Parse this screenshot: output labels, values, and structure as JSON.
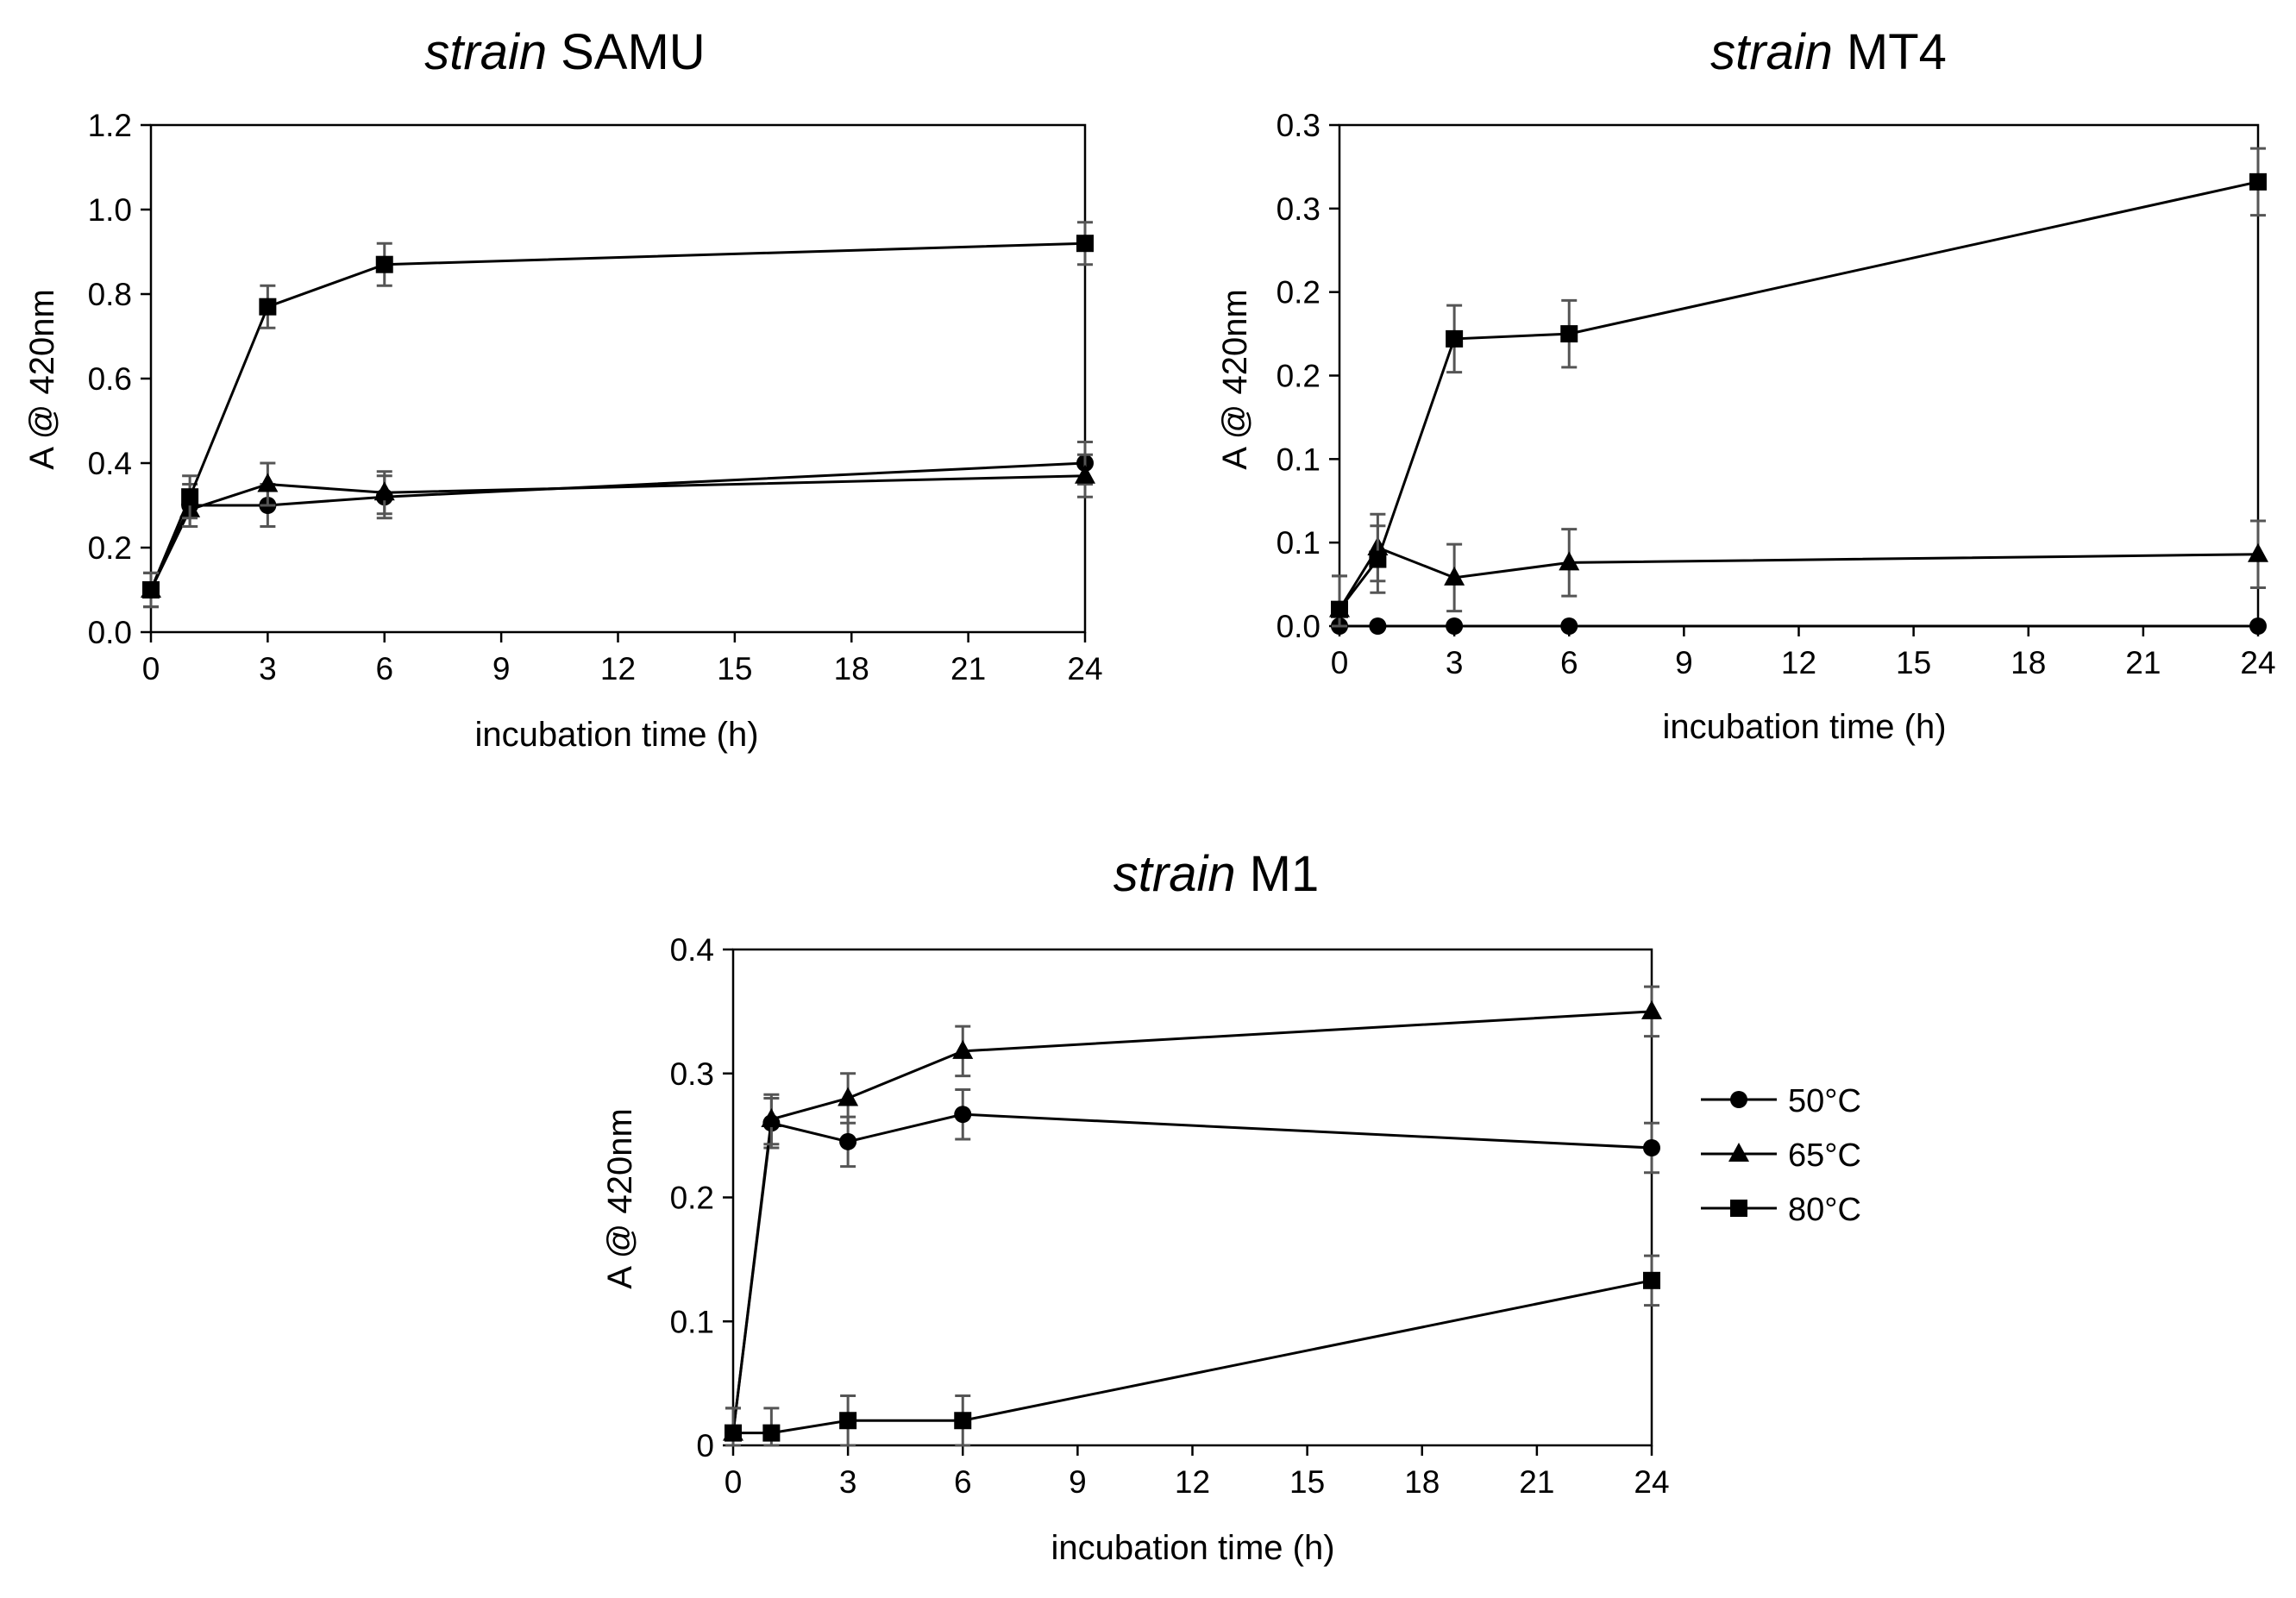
{
  "chart_data": [
    {
      "type": "line",
      "title_italic": "strain",
      "title_name": "SAMU",
      "xlabel": "incubation time (h)",
      "ylabel": "A @ 420nm",
      "x": [
        0,
        1,
        3,
        6,
        24
      ],
      "xlim": [
        0,
        24
      ],
      "xticks": [
        0,
        3,
        6,
        9,
        12,
        15,
        18,
        21,
        24
      ],
      "xtick_labels": [
        "0",
        "3",
        "6",
        "9",
        "12",
        "15",
        "18",
        "21",
        "24"
      ],
      "ylim": [
        0,
        1.2
      ],
      "yticks": [
        0,
        0.2,
        0.4,
        0.6,
        0.8,
        1.0,
        1.2
      ],
      "ytick_labels": [
        "0.0",
        "0.2",
        "0.4",
        "0.6",
        "0.8",
        "1.0",
        "1.2"
      ],
      "series": [
        {
          "name": "50°C",
          "marker": "circle",
          "values": [
            0.1,
            0.3,
            0.3,
            0.32,
            0.4
          ],
          "errors": [
            0.04,
            0.05,
            0.05,
            0.05,
            0.05
          ]
        },
        {
          "name": "65°C",
          "marker": "triangle",
          "values": [
            0.1,
            0.29,
            0.35,
            0.33,
            0.37
          ],
          "errors": [
            0.04,
            0.04,
            0.05,
            0.05,
            0.05
          ]
        },
        {
          "name": "80°C",
          "marker": "square",
          "values": [
            0.1,
            0.32,
            0.77,
            0.87,
            0.92
          ],
          "errors": [
            0.04,
            0.05,
            0.05,
            0.05,
            0.05
          ]
        }
      ]
    },
    {
      "type": "line",
      "title_italic": "strain",
      "title_name": "MT4",
      "xlabel": "incubation time (h)",
      "ylabel": "A @ 420nm",
      "x": [
        0,
        1,
        3,
        6,
        24
      ],
      "xlim": [
        0,
        24
      ],
      "xticks": [
        0,
        3,
        6,
        9,
        12,
        15,
        18,
        21,
        24
      ],
      "xtick_labels": [
        "0",
        "3",
        "6",
        "9",
        "12",
        "15",
        "18",
        "21",
        "24"
      ],
      "ylim": [
        0,
        0.3
      ],
      "yticks": [
        0,
        0.05,
        0.1,
        0.15,
        0.2,
        0.25,
        0.3
      ],
      "ytick_labels": [
        "0.0",
        "0.1",
        "0.1",
        "0.2",
        "0.2",
        "0.3",
        "0.3"
      ],
      "series": [
        {
          "name": "50°C",
          "marker": "circle",
          "values": [
            0,
            0,
            0,
            0,
            0
          ],
          "errors": [
            0,
            0,
            0,
            0,
            0
          ]
        },
        {
          "name": "65°C",
          "marker": "triangle",
          "values": [
            0.01,
            0.047,
            0.029,
            0.038,
            0.043
          ],
          "errors": [
            0.02,
            0.02,
            0.02,
            0.02,
            0.02
          ]
        },
        {
          "name": "80°C",
          "marker": "square",
          "values": [
            0.01,
            0.04,
            0.172,
            0.175,
            0.266
          ],
          "errors": [
            0.02,
            0.02,
            0.02,
            0.02,
            0.02
          ]
        }
      ]
    },
    {
      "type": "line",
      "title_italic": "strain",
      "title_name": "M1",
      "xlabel": "incubation time (h)",
      "ylabel": "A @ 420nm",
      "x": [
        0,
        1,
        3,
        6,
        24
      ],
      "xlim": [
        0,
        24
      ],
      "xticks": [
        0,
        3,
        6,
        9,
        12,
        15,
        18,
        21,
        24
      ],
      "xtick_labels": [
        "0",
        "3",
        "6",
        "9",
        "12",
        "15",
        "18",
        "21",
        "24"
      ],
      "ylim": [
        0,
        0.4
      ],
      "yticks": [
        0,
        0.1,
        0.2,
        0.3,
        0.4
      ],
      "ytick_labels": [
        "0",
        "0.1",
        "0.2",
        "0.3",
        "0.4"
      ],
      "legend_position": "right",
      "series": [
        {
          "name": "50°C",
          "marker": "circle",
          "values": [
            0.01,
            0.26,
            0.245,
            0.267,
            0.24
          ],
          "errors": [
            0.02,
            0.02,
            0.02,
            0.02,
            0.02
          ]
        },
        {
          "name": "65°C",
          "marker": "triangle",
          "values": [
            0.01,
            0.263,
            0.28,
            0.318,
            0.35
          ],
          "errors": [
            0.02,
            0.02,
            0.02,
            0.02,
            0.02
          ]
        },
        {
          "name": "80°C",
          "marker": "square",
          "values": [
            0.01,
            0.01,
            0.02,
            0.02,
            0.133
          ],
          "errors": [
            0.02,
            0.02,
            0.02,
            0.02,
            0.02
          ]
        }
      ]
    }
  ],
  "legend": {
    "items": [
      {
        "label": "50°C",
        "marker": "circle"
      },
      {
        "label": "65°C",
        "marker": "triangle"
      },
      {
        "label": "80°C",
        "marker": "square"
      }
    ]
  },
  "colors": {
    "line": "#000000",
    "error_bar": "#555555",
    "axis": "#000000"
  }
}
